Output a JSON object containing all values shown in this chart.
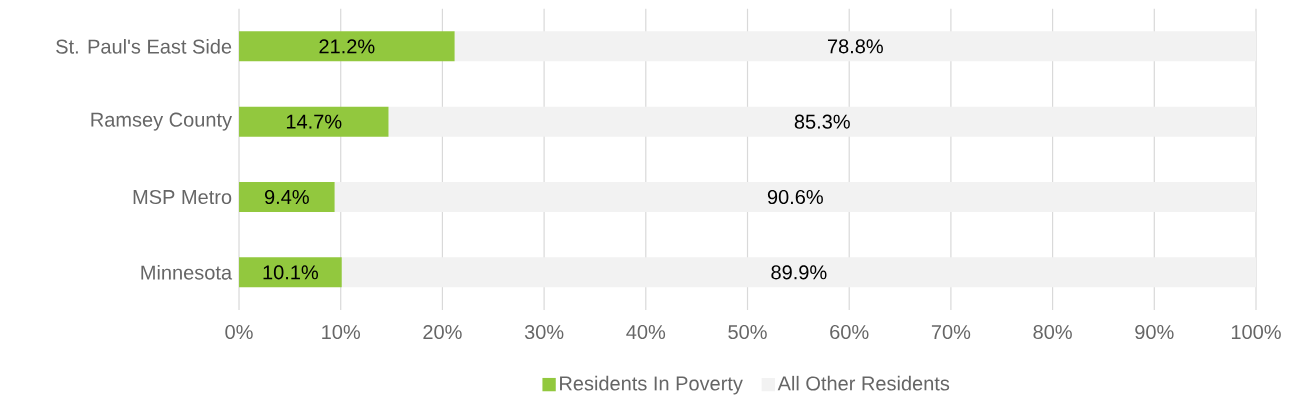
{
  "chart_data": {
    "type": "bar",
    "orientation": "horizontal",
    "stacked": true,
    "categories": [
      "St. Paul's East Side",
      "Ramsey County",
      "MSP Metro",
      "Minnesota"
    ],
    "series": [
      {
        "name": "Residents In Poverty",
        "color": "#92c83e",
        "values": [
          21.2,
          14.7,
          9.4,
          10.1
        ],
        "value_labels": [
          "21.2%",
          "14.7%",
          "9.4%",
          "10.1%"
        ]
      },
      {
        "name": "All Other Residents",
        "color": "#f2f2f2",
        "values": [
          78.8,
          85.3,
          90.6,
          89.9
        ],
        "value_labels": [
          "78.8%",
          "85.3%",
          "90.6%",
          "89.9%"
        ]
      }
    ],
    "xlim": [
      0,
      100
    ],
    "xticks": [
      {
        "value": 0,
        "label": "0%"
      },
      {
        "value": 10,
        "label": "10%"
      },
      {
        "value": 20,
        "label": "20%"
      },
      {
        "value": 30,
        "label": "30%"
      },
      {
        "value": 40,
        "label": "40%"
      },
      {
        "value": 50,
        "label": "50%"
      },
      {
        "value": 60,
        "label": "60%"
      },
      {
        "value": 70,
        "label": "70%"
      },
      {
        "value": 80,
        "label": "80%"
      },
      {
        "value": 90,
        "label": "90%"
      },
      {
        "value": 100,
        "label": "100%"
      }
    ],
    "grid": "x",
    "legend": "bottom"
  }
}
